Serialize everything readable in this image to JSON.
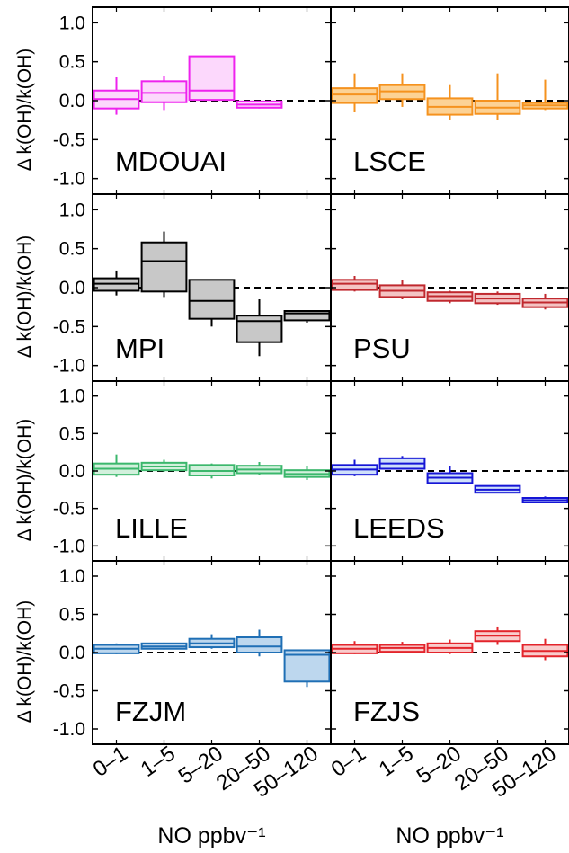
{
  "chart_data": {
    "type": "box",
    "ylabel": "Δ k(OH)/k(OH)",
    "xlabel": "NO ppbv⁻¹",
    "categories": [
      "0–1",
      "1–5",
      "5–20",
      "20–50",
      "50–120"
    ],
    "yticks": [
      "1.0",
      "0.5",
      "0.0",
      "-0.5",
      "-1.0"
    ],
    "ylim": [
      -1.2,
      1.2
    ],
    "reference_line": 0,
    "panels": [
      {
        "name": "MDOUAI",
        "color": "#ee22ee",
        "fill": "#fcd8fc",
        "boxes": [
          {
            "wlo": -0.18,
            "q1": -0.1,
            "med": 0.02,
            "q3": 0.13,
            "whi": 0.3
          },
          {
            "wlo": -0.12,
            "q1": -0.02,
            "med": 0.1,
            "q3": 0.25,
            "whi": 0.32
          },
          {
            "wlo": 0.0,
            "q1": 0.01,
            "med": 0.13,
            "q3": 0.57,
            "whi": 0.57
          },
          {
            "wlo": -0.1,
            "q1": -0.09,
            "med": -0.05,
            "q3": -0.01,
            "whi": 0.0
          },
          null
        ]
      },
      {
        "name": "LSCE",
        "color": "#f5921e",
        "fill": "#fcd295",
        "boxes": [
          {
            "wlo": -0.15,
            "q1": -0.03,
            "med": 0.08,
            "q3": 0.16,
            "whi": 0.35
          },
          {
            "wlo": -0.08,
            "q1": 0.02,
            "med": 0.12,
            "q3": 0.2,
            "whi": 0.35
          },
          {
            "wlo": -0.25,
            "q1": -0.18,
            "med": -0.08,
            "q3": 0.03,
            "whi": 0.2
          },
          {
            "wlo": -0.25,
            "q1": -0.17,
            "med": -0.09,
            "q3": 0.0,
            "whi": 0.35
          },
          {
            "wlo": -0.12,
            "q1": -0.1,
            "med": -0.06,
            "q3": -0.03,
            "whi": 0.27
          }
        ]
      },
      {
        "name": "MPI",
        "color": "#000000",
        "fill": "#c8c8c8",
        "boxes": [
          {
            "wlo": -0.1,
            "q1": -0.04,
            "med": 0.05,
            "q3": 0.12,
            "whi": 0.22
          },
          {
            "wlo": -0.12,
            "q1": -0.05,
            "med": 0.34,
            "q3": 0.58,
            "whi": 0.72
          },
          {
            "wlo": -0.5,
            "q1": -0.4,
            "med": -0.17,
            "q3": 0.1,
            "whi": 0.1
          },
          {
            "wlo": -0.88,
            "q1": -0.7,
            "med": -0.43,
            "q3": -0.36,
            "whi": -0.15
          },
          {
            "wlo": -0.45,
            "q1": -0.42,
            "med": -0.33,
            "q3": -0.3,
            "whi": -0.3
          }
        ]
      },
      {
        "name": "PSU",
        "color": "#c0282e",
        "fill": "#f4c4c4",
        "boxes": [
          {
            "wlo": -0.05,
            "q1": -0.03,
            "med": 0.05,
            "q3": 0.1,
            "whi": 0.15
          },
          {
            "wlo": -0.15,
            "q1": -0.12,
            "med": -0.04,
            "q3": 0.03,
            "whi": 0.1
          },
          {
            "wlo": -0.2,
            "q1": -0.17,
            "med": -0.11,
            "q3": -0.06,
            "whi": -0.04
          },
          {
            "wlo": -0.22,
            "q1": -0.2,
            "med": -0.14,
            "q3": -0.08,
            "whi": -0.05
          },
          {
            "wlo": -0.28,
            "q1": -0.25,
            "med": -0.19,
            "q3": -0.14,
            "whi": -0.08
          }
        ]
      },
      {
        "name": "LILLE",
        "color": "#3bb76c",
        "fill": "#d2f0dc",
        "boxes": [
          {
            "wlo": -0.08,
            "q1": -0.05,
            "med": 0.03,
            "q3": 0.1,
            "whi": 0.22
          },
          {
            "wlo": -0.01,
            "q1": 0.01,
            "med": 0.06,
            "q3": 0.11,
            "whi": 0.15
          },
          {
            "wlo": -0.1,
            "q1": -0.06,
            "med": 0.0,
            "q3": 0.08,
            "whi": 0.1
          },
          {
            "wlo": -0.05,
            "q1": -0.03,
            "med": 0.02,
            "q3": 0.07,
            "whi": 0.12
          },
          {
            "wlo": -0.12,
            "q1": -0.08,
            "med": -0.04,
            "q3": 0.01,
            "whi": 0.06
          }
        ]
      },
      {
        "name": "LEEDS",
        "color": "#1515d6",
        "fill": "#cfe0fa",
        "boxes": [
          {
            "wlo": -0.07,
            "q1": -0.05,
            "med": 0.02,
            "q3": 0.08,
            "whi": 0.15
          },
          {
            "wlo": 0.03,
            "q1": 0.03,
            "med": 0.1,
            "q3": 0.17,
            "whi": 0.2
          },
          {
            "wlo": -0.18,
            "q1": -0.16,
            "med": -0.09,
            "q3": -0.03,
            "whi": 0.06
          },
          {
            "wlo": -0.29,
            "q1": -0.29,
            "med": -0.25,
            "q3": -0.2,
            "whi": -0.2
          },
          {
            "wlo": -0.43,
            "q1": -0.42,
            "med": -0.39,
            "q3": -0.36,
            "whi": -0.34
          }
        ]
      },
      {
        "name": "FZJM",
        "color": "#1f6fb5",
        "fill": "#bdd7ee",
        "boxes": [
          {
            "wlo": -0.02,
            "q1": -0.01,
            "med": 0.05,
            "q3": 0.1,
            "whi": 0.12
          },
          {
            "wlo": 0.04,
            "q1": 0.05,
            "med": 0.08,
            "q3": 0.12,
            "whi": 0.13
          },
          {
            "wlo": 0.05,
            "q1": 0.07,
            "med": 0.12,
            "q3": 0.18,
            "whi": 0.24
          },
          {
            "wlo": -0.05,
            "q1": 0.0,
            "med": 0.08,
            "q3": 0.2,
            "whi": 0.3
          },
          {
            "wlo": -0.45,
            "q1": -0.38,
            "med": -0.03,
            "q3": 0.03,
            "whi": 0.03
          }
        ]
      },
      {
        "name": "FZJS",
        "color": "#e3242b",
        "fill": "#f9cccc",
        "boxes": [
          {
            "wlo": -0.02,
            "q1": -0.01,
            "med": 0.05,
            "q3": 0.1,
            "whi": 0.15
          },
          {
            "wlo": -0.01,
            "q1": 0.01,
            "med": 0.06,
            "q3": 0.1,
            "whi": 0.14
          },
          {
            "wlo": -0.02,
            "q1": 0.0,
            "med": 0.06,
            "q3": 0.12,
            "whi": 0.17
          },
          {
            "wlo": 0.1,
            "q1": 0.15,
            "med": 0.22,
            "q3": 0.28,
            "whi": 0.33
          },
          {
            "wlo": -0.1,
            "q1": -0.05,
            "med": 0.02,
            "q3": 0.1,
            "whi": 0.18
          }
        ]
      }
    ]
  }
}
